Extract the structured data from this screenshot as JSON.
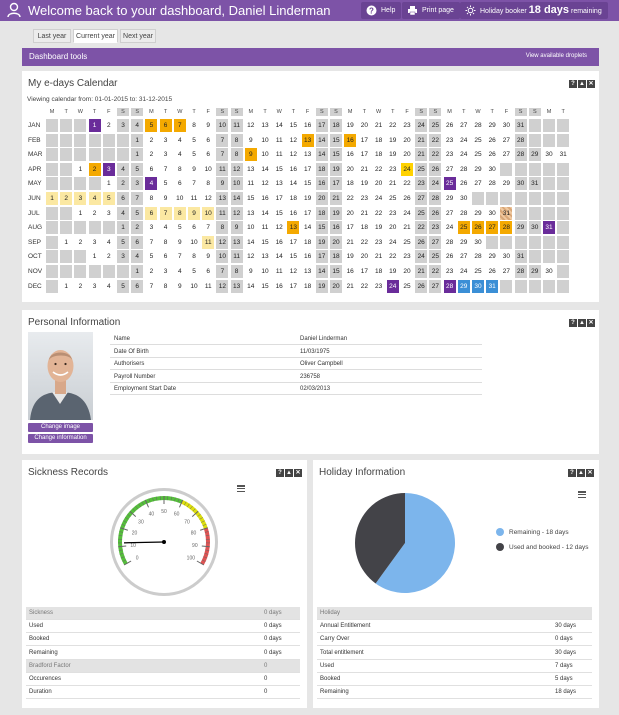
{
  "header": {
    "welcome": "Welcome back to your dashboard, Daniel Linderman",
    "help": "Help",
    "print": "Print page",
    "holiday_prefix": "Holiday booker",
    "holiday_days": "18 days",
    "holiday_suffix": "remaining"
  },
  "tabs": [
    "Last year",
    "Current year",
    "Next year"
  ],
  "toolsbar": {
    "title": "Dashboard tools",
    "link": "View available droplets"
  },
  "calendar": {
    "title": "My e-days Calendar",
    "viewing": "Viewing calendar from: 01-01-2015 to: 31-12-2015",
    "weekdays": [
      "M",
      "T",
      "W",
      "T",
      "F",
      "S",
      "S",
      "M",
      "T",
      "W",
      "T",
      "F",
      "S",
      "S",
      "M",
      "T",
      "W",
      "T",
      "F",
      "S",
      "S",
      "M",
      "T",
      "W",
      "T",
      "F",
      "S",
      "S",
      "M",
      "T",
      "W",
      "T",
      "F",
      "S",
      "S",
      "M",
      "T"
    ],
    "months": [
      {
        "name": "JAN",
        "offset": 3,
        "days": 31
      },
      {
        "name": "FEB",
        "offset": 6,
        "days": 28
      },
      {
        "name": "MAR",
        "offset": 6,
        "days": 31
      },
      {
        "name": "APR",
        "offset": 2,
        "days": 30
      },
      {
        "name": "MAY",
        "offset": 4,
        "days": 31
      },
      {
        "name": "JUN",
        "offset": 0,
        "days": 30
      },
      {
        "name": "JUL",
        "offset": 2,
        "days": 31
      },
      {
        "name": "AUG",
        "offset": 5,
        "days": 31
      },
      {
        "name": "SEP",
        "offset": 1,
        "days": 30
      },
      {
        "name": "OCT",
        "offset": 3,
        "days": 31
      },
      {
        "name": "NOV",
        "offset": 6,
        "days": 30
      },
      {
        "name": "DEC",
        "offset": 1,
        "days": 31
      }
    ],
    "highlights": {
      "JAN": {
        "1": "pur",
        "5": "org",
        "6": "org",
        "7": "org"
      },
      "FEB": {
        "13": "org",
        "16": "org"
      },
      "MAR": {
        "9": "org"
      },
      "APR": {
        "2": "org",
        "3": "pur",
        "24": "yel"
      },
      "MAY": {
        "4": "pur",
        "25": "pur"
      },
      "JUN": {
        "1": "lt",
        "2": "lt",
        "3": "lt",
        "4": "lt",
        "5": "lt"
      },
      "JUL": {
        "6": "lt",
        "7": "lt",
        "8": "lt",
        "9": "lt",
        "10": "lt",
        "31": "hatch"
      },
      "AUG": {
        "13": "org",
        "25": "org",
        "26": "org",
        "27": "org",
        "28": "org",
        "31": "pur"
      },
      "SEP": {
        "11": "lt"
      },
      "DEC": {
        "24": "pur",
        "28": "pur",
        "29": "blu",
        "30": "blu",
        "31": "blu"
      }
    }
  },
  "personal": {
    "title": "Personal Information",
    "rows": [
      {
        "k": "Name",
        "v": "Daniel Linderman"
      },
      {
        "k": "Date Of Birth",
        "v": "11/03/1975"
      },
      {
        "k": "Authorisers",
        "v": "Oliver Campbell"
      },
      {
        "k": "Payroll Number",
        "v": "236758"
      },
      {
        "k": "Employment Start Date",
        "v": "02/03/2013"
      }
    ],
    "change_image": "Change image",
    "change_info": "Change information"
  },
  "sickness": {
    "title": "Sickness Records",
    "gauge_value": 12,
    "gauge_labels": [
      "0",
      "10",
      "20",
      "30",
      "40",
      "50",
      "60",
      "70",
      "80",
      "90",
      "100"
    ],
    "rows": [
      {
        "k": "Sickness",
        "v": "0 days",
        "head": true
      },
      {
        "k": "Used",
        "v": "0 days"
      },
      {
        "k": "Booked",
        "v": "0 days"
      },
      {
        "k": "Remaining",
        "v": "0 days"
      },
      {
        "k": "Bradford Factor",
        "v": "0",
        "head": true
      },
      {
        "k": "Occurences",
        "v": "0"
      },
      {
        "k": "Duration",
        "v": "0"
      }
    ]
  },
  "holiday": {
    "title": "Holiday Information",
    "chart_data": {
      "type": "pie",
      "title": "",
      "categories": [
        "Remaining",
        "Used and booked"
      ],
      "values": [
        18,
        12
      ],
      "labels": [
        "Remaining - 18 days",
        "Used and booked - 12 days"
      ],
      "colors": [
        "#7cb5ec",
        "#434348"
      ],
      "legend": "right"
    },
    "rows": [
      {
        "k": "Holiday",
        "v": "",
        "head": true
      },
      {
        "k": "Annual Entitlement",
        "v": "30 days"
      },
      {
        "k": "Carry Over",
        "v": "0 days"
      },
      {
        "k": "Total entitlement",
        "v": "30 days"
      },
      {
        "k": "Used",
        "v": "7 days"
      },
      {
        "k": "Booked",
        "v": "5 days"
      },
      {
        "k": "Remaining",
        "v": "18 days"
      }
    ]
  }
}
